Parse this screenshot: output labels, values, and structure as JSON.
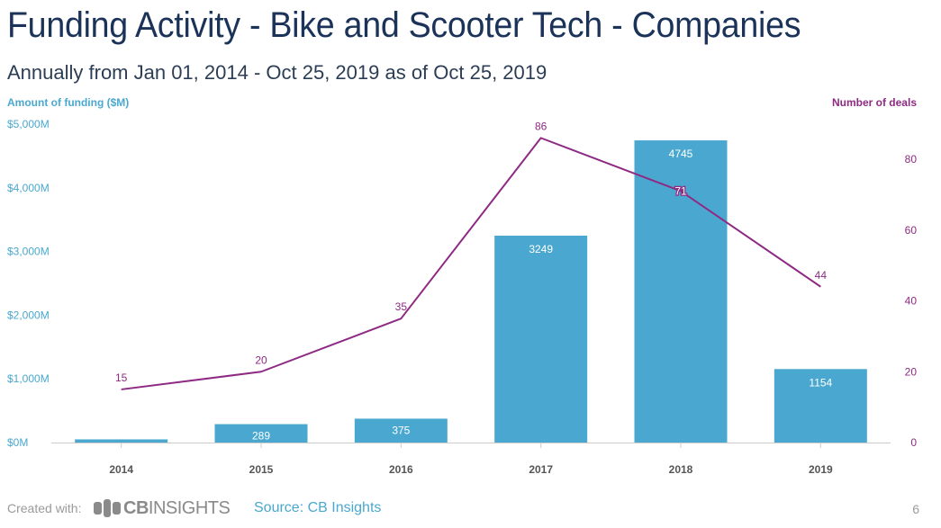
{
  "header": {
    "title": "Funding Activity - Bike and Scooter Tech - Companies",
    "subtitle": "Annually from Jan 01, 2014 - Oct 25, 2019 as of Oct 25, 2019"
  },
  "chart_data": {
    "type": "bar",
    "title": "Funding Activity - Bike and Scooter Tech - Companies",
    "subtitle": "Annually from Jan 01, 2014 - Oct 25, 2019 as of Oct 25, 2019",
    "categories": [
      "2014",
      "2015",
      "2016",
      "2017",
      "2018",
      "2019"
    ],
    "series": [
      {
        "name": "Amount of funding ($M)",
        "type": "bar",
        "axis": "left",
        "color": "#4aa8d0",
        "values": [
          50,
          289,
          375,
          3249,
          4745,
          1154
        ],
        "labels": [
          "",
          "289",
          "375",
          "3249",
          "4745",
          "1154"
        ]
      },
      {
        "name": "Number of deals",
        "type": "line",
        "axis": "right",
        "color": "#8e2a83",
        "values": [
          15,
          20,
          35,
          86,
          71,
          44
        ],
        "labels": [
          "15",
          "20",
          "35",
          "86",
          "71",
          "44"
        ]
      }
    ],
    "ylabel": "Amount of funding ($M)",
    "ylabel_right": "Number of deals",
    "ylim": [
      0,
      5000
    ],
    "ylim_right": [
      0,
      90
    ],
    "yticks": [
      0,
      1000,
      2000,
      3000,
      4000,
      5000
    ],
    "yticks_labels": [
      "$0M",
      "$1,000M",
      "$2,000M",
      "$3,000M",
      "$4,000M",
      "$5,000M"
    ],
    "yticks_right": [
      0,
      20,
      40,
      60,
      80
    ],
    "yticks_right_labels": [
      "0",
      "20",
      "40",
      "60",
      "80"
    ],
    "grid": false,
    "legend": "none"
  },
  "footer": {
    "created_with": "Created with:",
    "logo_bold": "CB",
    "logo_rest": "INSIGHTS",
    "source": "Source: CB Insights",
    "page_number": "6"
  },
  "colors": {
    "bar": "#4aa8d0",
    "line": "#8e2a83",
    "title": "#1b3358",
    "axis": "#cccccc",
    "muted": "#9a9a9a"
  }
}
